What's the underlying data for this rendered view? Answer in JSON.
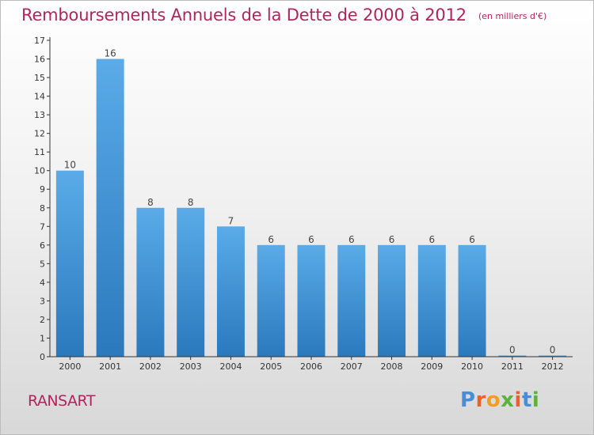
{
  "header": {
    "title": "Remboursements Annuels de la Dette de 2000 à 2012",
    "unit": "(en milliers d'€)"
  },
  "footer": {
    "commune": "RANSART",
    "logo_text": "Proxiti"
  },
  "colors": {
    "title": "#b0255d",
    "bar_top": "#5aabe8",
    "bar_bottom": "#2a79bd",
    "logo_letters": [
      "#4a8dd6",
      "#e8622c",
      "#f0a020",
      "#5bb33a",
      "#e8622c",
      "#4a8dd6",
      "#5bb33a"
    ]
  },
  "chart_data": {
    "type": "bar",
    "categories": [
      "2000",
      "2001",
      "2002",
      "2003",
      "2004",
      "2005",
      "2006",
      "2007",
      "2008",
      "2009",
      "2010",
      "2011",
      "2012"
    ],
    "values": [
      10,
      16,
      8,
      8,
      7,
      6,
      6,
      6,
      6,
      6,
      6,
      0,
      0
    ],
    "data_labels": [
      "10",
      "16",
      "8",
      "8",
      "7",
      "6",
      "6",
      "6",
      "6",
      "6",
      "6",
      "0",
      "0"
    ],
    "yticks": [
      "0",
      "1",
      "2",
      "3",
      "4",
      "5",
      "6",
      "7",
      "8",
      "9",
      "10",
      "11",
      "12",
      "13",
      "14",
      "15",
      "16",
      "17"
    ],
    "ylim": [
      0,
      17
    ],
    "title": "Remboursements Annuels de la Dette de 2000 à 2012",
    "xlabel": "",
    "ylabel": "",
    "grid": false,
    "legend": "none"
  }
}
